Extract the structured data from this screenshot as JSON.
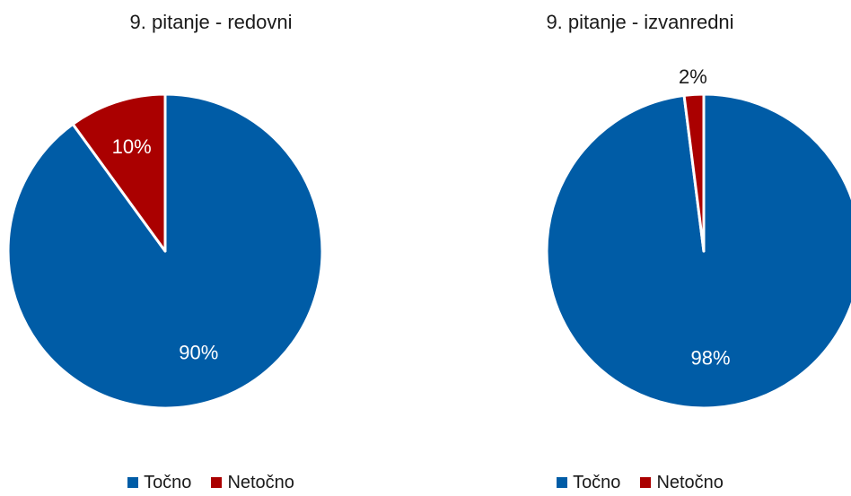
{
  "chart_data": [
    {
      "type": "pie",
      "title": "9. pitanje - redovni",
      "slices": [
        {
          "label": "Točno",
          "value": 90,
          "display": "90%",
          "color": "#005ca6",
          "label_color": "#ffffff"
        },
        {
          "label": "Netočno",
          "value": 10,
          "display": "10%",
          "color": "#aa0000",
          "label_color": "#ffffff"
        }
      ],
      "legend": [
        "Točno",
        "Netočno"
      ],
      "legend_placement": "bottom"
    },
    {
      "type": "pie",
      "title": "9. pitanje - izvanredni",
      "slices": [
        {
          "label": "Točno",
          "value": 98,
          "display": "98%",
          "color": "#005ca6",
          "label_color": "#ffffff"
        },
        {
          "label": "Netočno",
          "value": 2,
          "display": "2%",
          "color": "#aa0000",
          "label_color": "#1a1a1a"
        }
      ],
      "legend": [
        "Točno",
        "Netočno"
      ],
      "legend_placement": "bottom"
    }
  ]
}
